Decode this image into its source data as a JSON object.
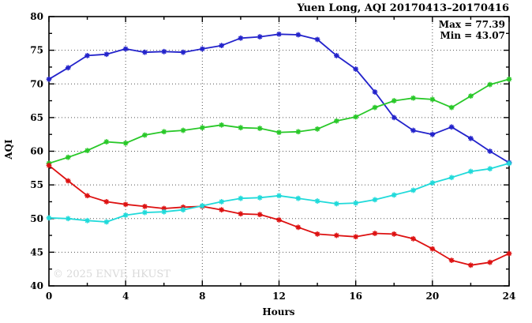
{
  "title": "Yuen Long, AQI 20170413–20170416",
  "annotation": {
    "max_label": "Max = 77.39",
    "min_label": "Min = 43.07"
  },
  "watermark": "© 2025 ENVF, HKUST",
  "chart_data": {
    "type": "line",
    "title": "Yuen Long, AQI 20170413–20170416",
    "xlabel": "Hours",
    "ylabel": "AQI",
    "xlim": [
      0,
      24
    ],
    "ylim": [
      40,
      80
    ],
    "xticks": [
      0,
      4,
      8,
      12,
      16,
      20,
      24
    ],
    "yticks": [
      40,
      45,
      50,
      55,
      60,
      65,
      70,
      75,
      80
    ],
    "grid": true,
    "legend_position": "none",
    "marker": "asterisk",
    "stated_max": 77.39,
    "stated_min": 43.07,
    "x": [
      0,
      1,
      2,
      3,
      4,
      5,
      6,
      7,
      8,
      9,
      10,
      11,
      12,
      13,
      14,
      15,
      16,
      17,
      18,
      19,
      20,
      21,
      22,
      23,
      24
    ],
    "series": [
      {
        "name": "blue",
        "color": "#2323cb",
        "values": [
          70.7,
          72.4,
          74.2,
          74.4,
          75.2,
          74.7,
          74.8,
          74.7,
          75.2,
          75.7,
          76.8,
          77.0,
          77.39,
          77.3,
          76.6,
          74.2,
          72.2,
          68.8,
          65.0,
          63.1,
          62.5,
          63.6,
          61.9,
          60.0,
          58.3
        ]
      },
      {
        "name": "green",
        "color": "#28c828",
        "values": [
          58.2,
          59.1,
          60.1,
          61.4,
          61.2,
          62.4,
          62.9,
          63.1,
          63.5,
          63.9,
          63.5,
          63.4,
          62.8,
          62.9,
          63.3,
          64.5,
          65.1,
          66.5,
          67.5,
          67.9,
          67.7,
          66.5,
          68.2,
          69.9,
          70.7
        ]
      },
      {
        "name": "red",
        "color": "#dd1111",
        "values": [
          57.9,
          55.6,
          53.4,
          52.5,
          52.1,
          51.8,
          51.5,
          51.7,
          51.8,
          51.3,
          50.7,
          50.6,
          49.8,
          48.7,
          47.7,
          47.5,
          47.3,
          47.8,
          47.7,
          47.0,
          45.5,
          43.8,
          43.07,
          43.5,
          44.8
        ]
      },
      {
        "name": "cyan",
        "color": "#20dada",
        "values": [
          50.1,
          50.0,
          49.7,
          49.5,
          50.5,
          50.9,
          51.0,
          51.3,
          51.9,
          52.5,
          53.0,
          53.1,
          53.4,
          53.0,
          52.6,
          52.2,
          52.3,
          52.8,
          53.5,
          54.2,
          55.3,
          56.1,
          57.0,
          57.4,
          58.2
        ]
      }
    ]
  }
}
